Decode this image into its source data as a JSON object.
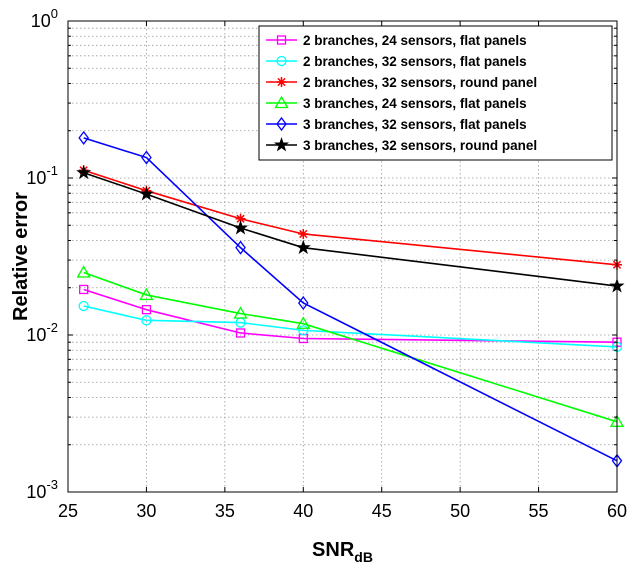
{
  "chart_data": {
    "type": "line",
    "xlabel": "SNR",
    "xlabel_sub": "dB",
    "ylabel": "Relative error",
    "xlim": [
      25,
      60
    ],
    "ylim": [
      0.001,
      1
    ],
    "yscale": "log",
    "grid": true,
    "legend_position": "top-right",
    "x_ticks": [
      25,
      30,
      35,
      40,
      45,
      50,
      55,
      60
    ],
    "x_tick_labels": [
      "25",
      "30",
      "35",
      "40",
      "45",
      "50",
      "55",
      "60"
    ],
    "y_ticks": [
      0.001,
      0.01,
      0.1,
      1
    ],
    "y_tick_labels": [
      {
        "base": "10",
        "exp": "-3"
      },
      {
        "base": "10",
        "exp": "-2"
      },
      {
        "base": "10",
        "exp": "-1"
      },
      {
        "base": "10",
        "exp": "0"
      }
    ],
    "series": [
      {
        "name": "2 branches, 24 sensors, flat panels",
        "color": "#ff00ff",
        "marker": "square",
        "x": [
          26,
          30,
          36,
          40,
          60
        ],
        "values": [
          0.0195,
          0.0145,
          0.0103,
          0.0095,
          0.009
        ]
      },
      {
        "name": "2 branches, 32 sensors, flat panels",
        "color": "#00ffff",
        "marker": "circle",
        "x": [
          26,
          30,
          36,
          40,
          60
        ],
        "values": [
          0.0153,
          0.0124,
          0.012,
          0.0107,
          0.0084
        ]
      },
      {
        "name": "2 branches, 32 sensors, round panel",
        "color": "#ff0000",
        "marker": "asterisk",
        "x": [
          26,
          30,
          36,
          40,
          60
        ],
        "values": [
          0.112,
          0.083,
          0.055,
          0.044,
          0.028
        ]
      },
      {
        "name": "3 branches, 24 sensors, flat panels",
        "color": "#00ff00",
        "marker": "triangle",
        "x": [
          26,
          30,
          36,
          40,
          60
        ],
        "values": [
          0.025,
          0.018,
          0.0137,
          0.0118,
          0.0028
        ]
      },
      {
        "name": "3 branches, 32 sensors, flat panels",
        "color": "#0000ff",
        "marker": "diamond",
        "x": [
          26,
          30,
          36,
          40,
          60
        ],
        "values": [
          0.18,
          0.135,
          0.036,
          0.016,
          0.00158
        ]
      },
      {
        "name": "3 branches, 32 sensors, round panel",
        "color": "#000000",
        "marker": "star",
        "x": [
          26,
          30,
          36,
          40,
          60
        ],
        "values": [
          0.108,
          0.079,
          0.048,
          0.036,
          0.0205
        ]
      }
    ]
  }
}
